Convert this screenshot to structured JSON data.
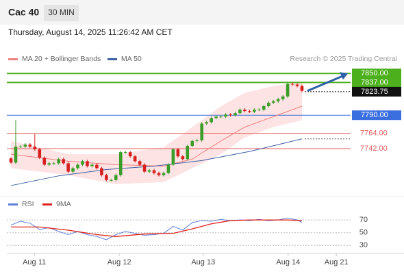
{
  "header": {
    "symbol": "Cac 40",
    "interval": "30 MIN",
    "timestamp": "Thursday, August 14, 2025 11:26:42 AM CET",
    "credit": "Research © 2025 Trading Central"
  },
  "chart_data": [
    {
      "type": "candlestick",
      "ylim": [
        7685,
        7862
      ],
      "xlim": [
        -0.86,
        70.9
      ],
      "up_color": "#3a9d2a",
      "down_color": "#d62020",
      "open": [
        7728,
        7722,
        7745,
        7745,
        7748,
        7745,
        7741,
        7729,
        7719,
        7721,
        7721,
        7727,
        7721,
        7709,
        7714,
        7719,
        7724,
        7717,
        7719,
        7714,
        7704,
        7697,
        7697,
        7704,
        7737,
        7737,
        7731,
        7724,
        7719,
        7709,
        7711,
        7707,
        7704,
        7707,
        7719,
        7741,
        7731,
        7727,
        7746,
        7753,
        7754,
        7778,
        7780,
        7786,
        7788,
        7788,
        7791,
        7790,
        7793,
        7798,
        7796,
        7795,
        7798,
        7798,
        7803,
        7808,
        7810,
        7813,
        7817,
        7835,
        7834,
        7832
      ],
      "high": [
        7730,
        7783,
        7747,
        7750,
        7750,
        7763,
        7743,
        7731,
        7723,
        7723,
        7729,
        7729,
        7723,
        7716,
        7721,
        7726,
        7726,
        7721,
        7721,
        7716,
        7706,
        7699,
        7706,
        7739,
        7739,
        7739,
        7733,
        7726,
        7721,
        7713,
        7713,
        7709,
        7709,
        7721,
        7743,
        7743,
        7733,
        7748,
        7755,
        7756,
        7780,
        7782,
        7788,
        7790,
        7790,
        7793,
        7793,
        7795,
        7800,
        7800,
        7798,
        7800,
        7800,
        7805,
        7810,
        7812,
        7815,
        7819,
        7837,
        7837,
        7836,
        7834
      ],
      "low": [
        7720,
        7720,
        7743,
        7743,
        7743,
        7739,
        7727,
        7717,
        7717,
        7719,
        7719,
        7719,
        7707,
        7707,
        7712,
        7717,
        7715,
        7715,
        7712,
        7702,
        7695,
        7695,
        7695,
        7702,
        7735,
        7729,
        7722,
        7717,
        7707,
        7707,
        7705,
        7702,
        7702,
        7705,
        7717,
        7729,
        7725,
        7725,
        7744,
        7751,
        7752,
        7776,
        7778,
        7784,
        7786,
        7786,
        7788,
        7788,
        7791,
        7794,
        7793,
        7793,
        7796,
        7796,
        7801,
        7806,
        7808,
        7811,
        7815,
        7832,
        7830,
        7823
      ],
      "close": [
        7722,
        7745,
        7745,
        7748,
        7745,
        7741,
        7729,
        7719,
        7721,
        7721,
        7727,
        7721,
        7709,
        7714,
        7719,
        7724,
        7717,
        7719,
        7714,
        7704,
        7697,
        7697,
        7704,
        7737,
        7737,
        7731,
        7724,
        7719,
        7709,
        7711,
        7707,
        7704,
        7707,
        7719,
        7741,
        7731,
        7727,
        7746,
        7753,
        7754,
        7778,
        7780,
        7786,
        7788,
        7788,
        7791,
        7790,
        7793,
        7798,
        7796,
        7795,
        7798,
        7798,
        7803,
        7808,
        7810,
        7813,
        7817,
        7835,
        7834,
        7832,
        7825
      ],
      "indicators": [
        {
          "name": "MA 20 + Bollinger Bands",
          "color": "#f08080",
          "band_color": "#fde3e3",
          "x": [
            0,
            12,
            22,
            32,
            38,
            44,
            49,
            55,
            61
          ],
          "values": [
            7734,
            7724,
            7719,
            7717,
            7727,
            7753,
            7773,
            7788,
            7803
          ],
          "upper": [
            7753,
            7734,
            7734,
            7744,
            7773,
            7803,
            7822,
            7832,
            7837
          ],
          "lower": [
            7714,
            7704,
            7691,
            7694,
            7714,
            7734,
            7758,
            7773,
            7783
          ]
        },
        {
          "name": "MA 50",
          "color": "#3a5fa0",
          "x": [
            0,
            10,
            20,
            30,
            40,
            50,
            61
          ],
          "values": [
            7689,
            7703,
            7712,
            7717,
            7725,
            7738,
            7756
          ]
        }
      ],
      "levels": [
        {
          "value": 7850,
          "label": "7850.00",
          "color": "#4caf1c",
          "style": "box"
        },
        {
          "value": 7837,
          "label": "7837.00",
          "color": "#4caf1c",
          "style": "box"
        },
        {
          "value": 7823.75,
          "label": "7823.75",
          "color": "#111111",
          "style": "box"
        },
        {
          "value": 7790,
          "label": "7790.00",
          "color": "#3b6fe0",
          "style": "box"
        },
        {
          "value": 7764,
          "label": "7764.00",
          "color": "#e06060",
          "style": "text"
        },
        {
          "value": 7742,
          "label": "7742.00",
          "color": "#e06060",
          "style": "text"
        }
      ]
    },
    {
      "type": "line",
      "ylim": [
        12,
        82
      ],
      "xlim": [
        -0.86,
        70.9
      ],
      "yticks": [
        70,
        50,
        30
      ],
      "xticks": [
        {
          "value": 4.9,
          "label": "Aug 11"
        },
        {
          "value": 22.7,
          "label": "Aug 12"
        },
        {
          "value": 40.3,
          "label": "Aug 13"
        },
        {
          "value": 58.1,
          "label": "Aug 14"
        },
        {
          "value": 68.2,
          "label": "Aug 21"
        }
      ],
      "series": [
        {
          "name": "RSI",
          "color": "#5b7fd6",
          "x": [
            0,
            2,
            4,
            6,
            8,
            10,
            12,
            14,
            16,
            18,
            20,
            22,
            24,
            26,
            28,
            30,
            32,
            34,
            36,
            38,
            40,
            42,
            44,
            46,
            48,
            50,
            52,
            54,
            56,
            58,
            60,
            61
          ],
          "values": [
            62,
            68,
            65,
            55,
            58,
            52,
            47,
            52,
            47,
            44,
            39,
            47,
            52,
            49,
            46,
            47,
            49,
            60,
            54,
            66,
            69,
            68,
            71,
            69,
            70,
            69,
            71,
            69,
            70,
            73,
            70,
            66
          ]
        },
        {
          "name": "9MA",
          "color": "#e0201a",
          "x": [
            0,
            6,
            12,
            18,
            22,
            28,
            34,
            38,
            42,
            46,
            50,
            54,
            58,
            61
          ],
          "values": [
            59,
            59,
            54,
            47,
            44,
            48,
            49,
            56,
            64,
            69,
            70,
            70,
            70,
            69
          ]
        }
      ]
    }
  ]
}
